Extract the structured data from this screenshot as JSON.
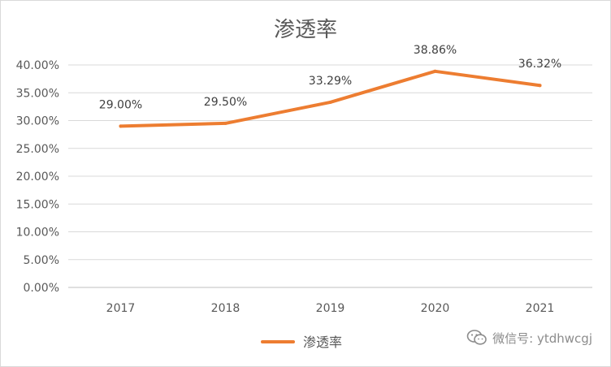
{
  "chart_data": {
    "type": "line",
    "title": "渗透率",
    "categories": [
      "2017",
      "2018",
      "2019",
      "2020",
      "2021"
    ],
    "series": [
      {
        "name": "渗透率",
        "values": [
          29.0,
          29.5,
          33.29,
          38.86,
          36.32
        ],
        "color": "#ED7D31"
      }
    ],
    "data_labels": [
      "29.00%",
      "29.50%",
      "33.29%",
      "38.86%",
      "36.32%"
    ],
    "y_ticks": [
      "0.00%",
      "5.00%",
      "10.00%",
      "15.00%",
      "20.00%",
      "25.00%",
      "30.00%",
      "35.00%",
      "40.00%"
    ],
    "ylim": [
      0,
      40
    ],
    "grid": true,
    "legend": "bottom"
  },
  "watermark": {
    "text": "微信号: ytdhwcgj",
    "icon": "wechat-icon"
  }
}
